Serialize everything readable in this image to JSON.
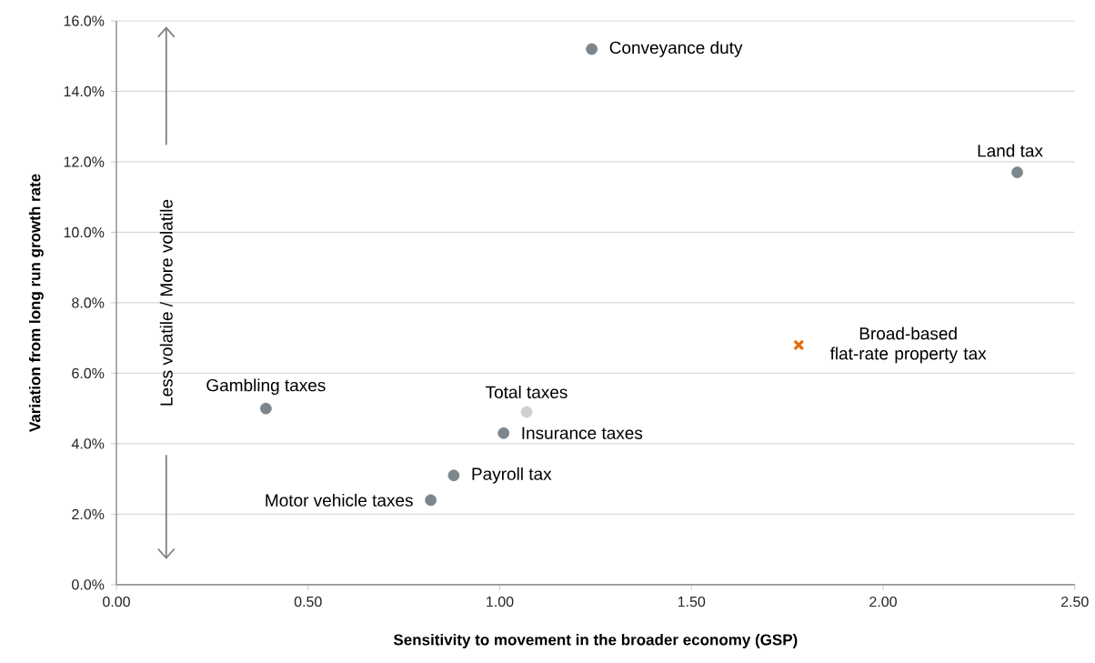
{
  "chart_data": {
    "type": "scatter",
    "xlabel": "Sensitivity to movement in the broader economy (GSP)",
    "ylabel": "Variation from long run growth rate",
    "xlim": [
      0,
      2.5
    ],
    "ylim": [
      0,
      16
    ],
    "xticks": [
      {
        "value": 0,
        "label": "0.00"
      },
      {
        "value": 0.5,
        "label": "0.50"
      },
      {
        "value": 1,
        "label": "1.00"
      },
      {
        "value": 1.5,
        "label": "1.50"
      },
      {
        "value": 2,
        "label": "2.00"
      },
      {
        "value": 2.5,
        "label": "2.50"
      }
    ],
    "yticks": [
      {
        "value": 0,
        "label": "0.0%"
      },
      {
        "value": 2,
        "label": "2.0%"
      },
      {
        "value": 4,
        "label": "4.0%"
      },
      {
        "value": 6,
        "label": "6.0%"
      },
      {
        "value": 8,
        "label": "8.0%"
      },
      {
        "value": 10,
        "label": "10.0%"
      },
      {
        "value": 12,
        "label": "12.0%"
      },
      {
        "value": 14,
        "label": "14.0%"
      },
      {
        "value": 16,
        "label": "16.0%"
      }
    ],
    "grid": "y",
    "series": [
      {
        "name": "Conveyance duty",
        "color": "#7d868c",
        "marker": "circle",
        "x": [
          1.24
        ],
        "values": [
          15.2
        ]
      },
      {
        "name": "Land tax",
        "color": "#7d868c",
        "marker": "circle",
        "x": [
          2.35
        ],
        "values": [
          11.7
        ]
      },
      {
        "name": "Broad-based flat-rate property tax",
        "color": "#e46c0a",
        "marker": "cross",
        "x": [
          1.78
        ],
        "values": [
          6.8
        ]
      },
      {
        "name": "Gambling taxes",
        "color": "#7d868c",
        "marker": "circle",
        "x": [
          0.39
        ],
        "values": [
          5.0
        ]
      },
      {
        "name": "Total taxes",
        "color": "#d0d0d0",
        "marker": "circle",
        "x": [
          1.07
        ],
        "values": [
          4.9
        ]
      },
      {
        "name": "Insurance taxes",
        "color": "#7d868c",
        "marker": "circle",
        "x": [
          1.01
        ],
        "values": [
          4.3
        ]
      },
      {
        "name": "Payroll tax",
        "color": "#7d868c",
        "marker": "circle",
        "x": [
          0.88
        ],
        "values": [
          3.1
        ]
      },
      {
        "name": "Motor vehicle taxes",
        "color": "#7d868c",
        "marker": "circle",
        "x": [
          0.82
        ],
        "values": [
          2.4
        ]
      }
    ],
    "annotations": [
      "Less volatile / More volatile"
    ]
  }
}
